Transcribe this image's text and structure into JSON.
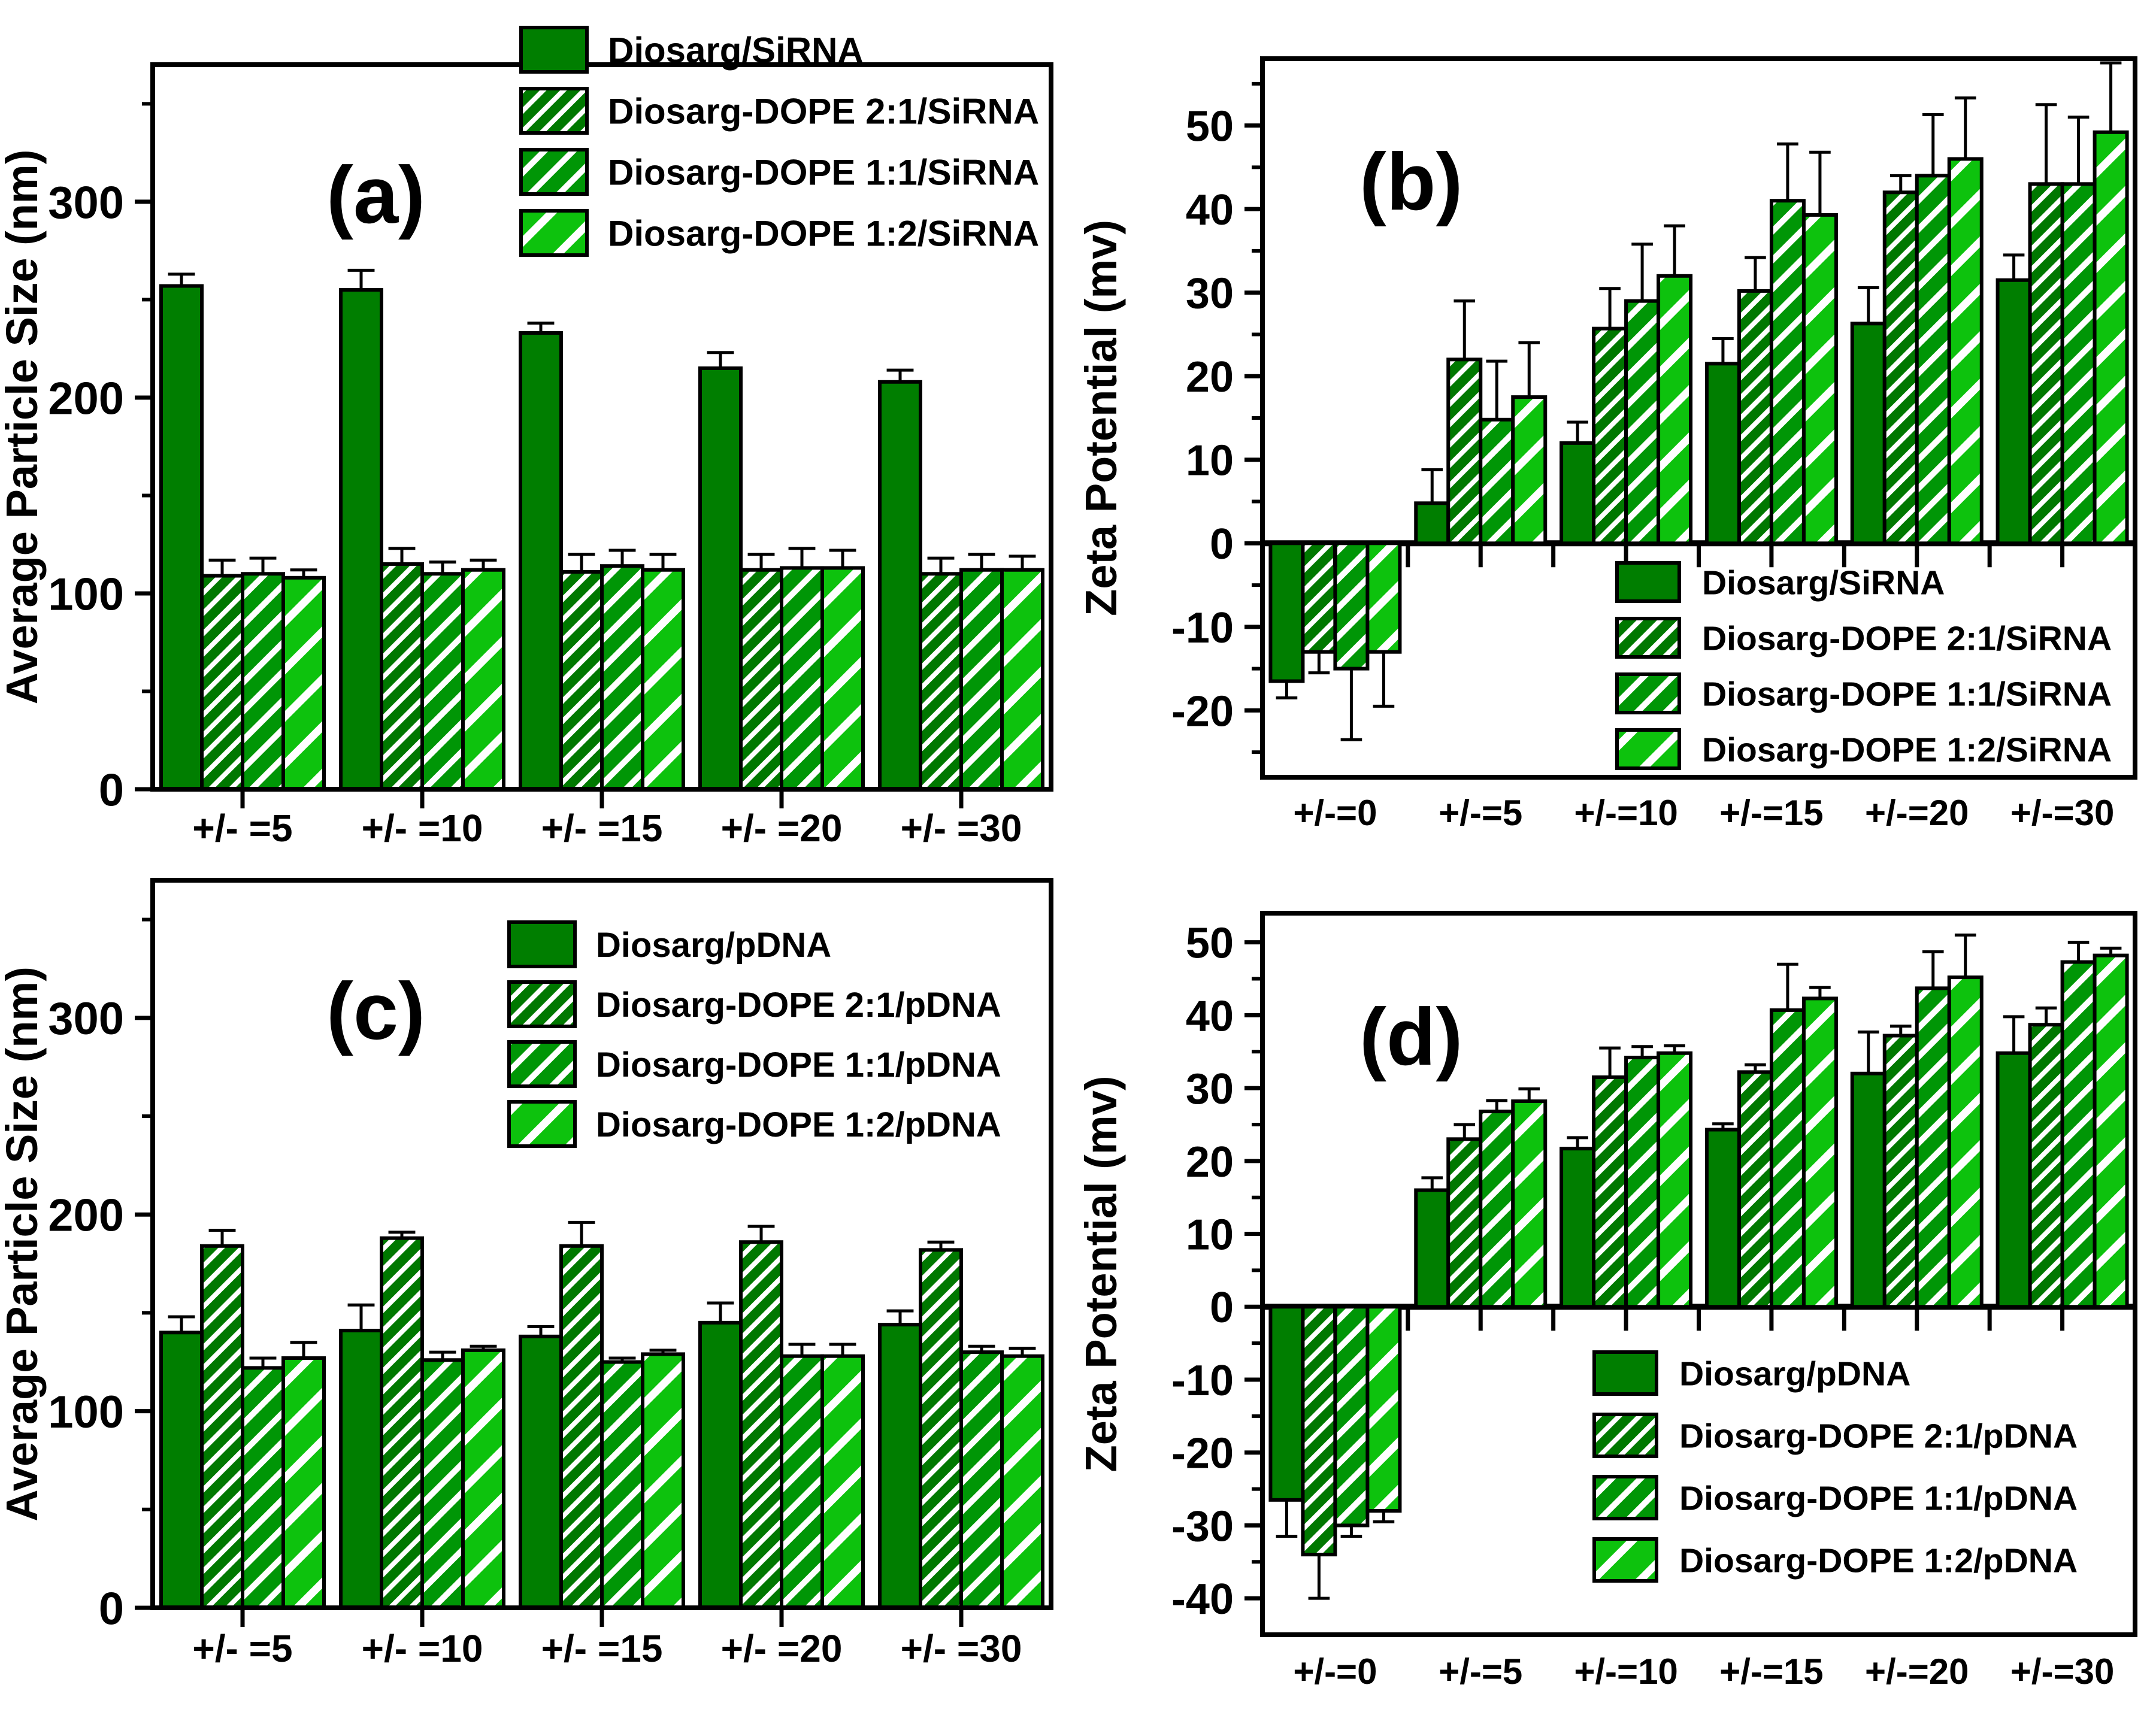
{
  "figure": {
    "background": "#FFFFFF",
    "colors": {
      "solid": "#007E00",
      "hatch_dense": "#007800",
      "hatch_medium": "#009606",
      "hatch_wide": "#0DC20D",
      "outline": "#000000"
    },
    "hatch": {
      "hatch_dense": {
        "period": 24,
        "stripe": 8
      },
      "hatch_medium": {
        "period": 34,
        "stripe": 10
      },
      "hatch_wide": {
        "period": 56,
        "stripe": 13
      }
    }
  },
  "chart_data": [
    {
      "id": "a",
      "type": "bar",
      "letter": "(a)",
      "ylabel": "Average Particle Size (nm)",
      "xlabel": "",
      "legend_position": "top",
      "grid": false,
      "categories": [
        "+/- =5",
        "+/- =10",
        "+/- =15",
        "+/- =20",
        "+/- =30"
      ],
      "ylim": [
        0,
        370
      ],
      "yticks": [
        0,
        100,
        200,
        300
      ],
      "ytick_minor_step": 50,
      "series": [
        {
          "name": "Diosarg/SiRNA",
          "style": "solid",
          "values": [
            257,
            255,
            233,
            215,
            208
          ],
          "errors": [
            6,
            10,
            5,
            8,
            6
          ]
        },
        {
          "name": "Diosarg-DOPE 2:1/SiRNA",
          "style": "hatch_dense",
          "values": [
            109,
            115,
            111,
            112,
            110
          ],
          "errors": [
            8,
            8,
            9,
            8,
            8
          ]
        },
        {
          "name": "Diosarg-DOPE 1:1/SiRNA",
          "style": "hatch_medium",
          "values": [
            110,
            110,
            114,
            113,
            112
          ],
          "errors": [
            8,
            6,
            8,
            10,
            8
          ]
        },
        {
          "name": "Diosarg-DOPE 1:2/SiRNA",
          "style": "hatch_wide",
          "values": [
            108,
            112,
            112,
            113,
            112
          ],
          "errors": [
            4,
            5,
            8,
            9,
            7
          ]
        }
      ]
    },
    {
      "id": "b",
      "type": "bar",
      "letter": "(b)",
      "ylabel": "Zeta Potential (mv)",
      "xlabel": "",
      "legend_position": "lower-right",
      "grid": false,
      "categories": [
        "+/-=0",
        "+/-=5",
        "+/-=10",
        "+/-=15",
        "+/-=20",
        "+/-=30"
      ],
      "ylim": [
        -28,
        58
      ],
      "yticks": [
        -20,
        -10,
        0,
        10,
        20,
        30,
        40,
        50
      ],
      "ytick_minor_step": 5,
      "series": [
        {
          "name": "Diosarg/SiRNA",
          "style": "solid",
          "values": [
            -16.5,
            4.8,
            12,
            21.5,
            26.3,
            31.5
          ],
          "errors": [
            2,
            4,
            2.5,
            3,
            4.3,
            3
          ]
        },
        {
          "name": "Diosarg-DOPE 2:1/SiRNA",
          "style": "hatch_dense",
          "values": [
            -13,
            22,
            25.7,
            30.2,
            42,
            43
          ],
          "errors": [
            2.5,
            7,
            4.8,
            4,
            2,
            9.5
          ]
        },
        {
          "name": "Diosarg-DOPE 1:1/SiRNA",
          "style": "hatch_medium",
          "values": [
            -15,
            14.8,
            29,
            41,
            44,
            43
          ],
          "errors": [
            8.5,
            7,
            6.8,
            6.8,
            7.3,
            8
          ]
        },
        {
          "name": "Diosarg-DOPE 1:2/SiRNA",
          "style": "hatch_wide",
          "values": [
            -13,
            17.5,
            32,
            39.3,
            46,
            49.2
          ],
          "errors": [
            6.5,
            6.5,
            6,
            7.5,
            7.3,
            8.3
          ]
        }
      ]
    },
    {
      "id": "c",
      "type": "bar",
      "letter": "(c)",
      "ylabel": "Average Particle Size (nm)",
      "xlabel": "",
      "legend_position": "top",
      "grid": false,
      "categories": [
        "+/- =5",
        "+/- =10",
        "+/- =15",
        "+/- =20",
        "+/- =30"
      ],
      "ylim": [
        0,
        370
      ],
      "yticks": [
        0,
        100,
        200,
        300
      ],
      "ytick_minor_step": 50,
      "series": [
        {
          "name": "Diosarg/pDNA",
          "style": "solid",
          "values": [
            140,
            141,
            138,
            145,
            144
          ],
          "errors": [
            8,
            13,
            5,
            10,
            7
          ]
        },
        {
          "name": "Diosarg-DOPE 2:1/pDNA",
          "style": "hatch_dense",
          "values": [
            184,
            188,
            184,
            186,
            182
          ],
          "errors": [
            8,
            3,
            12,
            8,
            4
          ]
        },
        {
          "name": "Diosarg-DOPE 1:1/pDNA",
          "style": "hatch_medium",
          "values": [
            122,
            126,
            125,
            128,
            130
          ],
          "errors": [
            5,
            4,
            2,
            6,
            3
          ]
        },
        {
          "name": "Diosarg-DOPE 1:2/pDNA",
          "style": "hatch_wide",
          "values": [
            127,
            131,
            129,
            128,
            128
          ],
          "errors": [
            8,
            2,
            2,
            6,
            4
          ]
        }
      ]
    },
    {
      "id": "d",
      "type": "bar",
      "letter": "(d)",
      "ylabel": "Zeta Potential (mv)",
      "xlabel": "",
      "legend_position": "lower-right",
      "grid": false,
      "categories": [
        "+/-=0",
        "+/-=5",
        "+/-=10",
        "+/-=15",
        "+/-=20",
        "+/-=30"
      ],
      "ylim": [
        -45,
        54
      ],
      "yticks": [
        -40,
        -30,
        -20,
        -10,
        0,
        10,
        20,
        30,
        40,
        50
      ],
      "ytick_minor_step": 5,
      "series": [
        {
          "name": "Diosarg/pDNA",
          "style": "solid",
          "values": [
            -26.5,
            16,
            21.7,
            24.3,
            32,
            34.8
          ],
          "errors": [
            5,
            1.7,
            1.5,
            0.8,
            5.7,
            5
          ]
        },
        {
          "name": "Diosarg-DOPE 2:1/pDNA",
          "style": "hatch_dense",
          "values": [
            -34,
            23,
            31.5,
            32.2,
            37.2,
            38.7
          ],
          "errors": [
            6,
            2,
            4,
            1,
            1.3,
            2.3
          ]
        },
        {
          "name": "Diosarg-DOPE 1:1/pDNA",
          "style": "hatch_medium",
          "values": [
            -30,
            26.8,
            34.2,
            40.7,
            43.7,
            47.3
          ],
          "errors": [
            1.5,
            1.5,
            1.5,
            6.3,
            5,
            2.7
          ]
        },
        {
          "name": "Diosarg-DOPE 1:2/pDNA",
          "style": "hatch_wide",
          "values": [
            -28,
            28.2,
            34.8,
            42.3,
            45.2,
            48.2
          ],
          "errors": [
            1.5,
            1.7,
            1,
            1.5,
            5.8,
            1
          ]
        }
      ]
    }
  ]
}
